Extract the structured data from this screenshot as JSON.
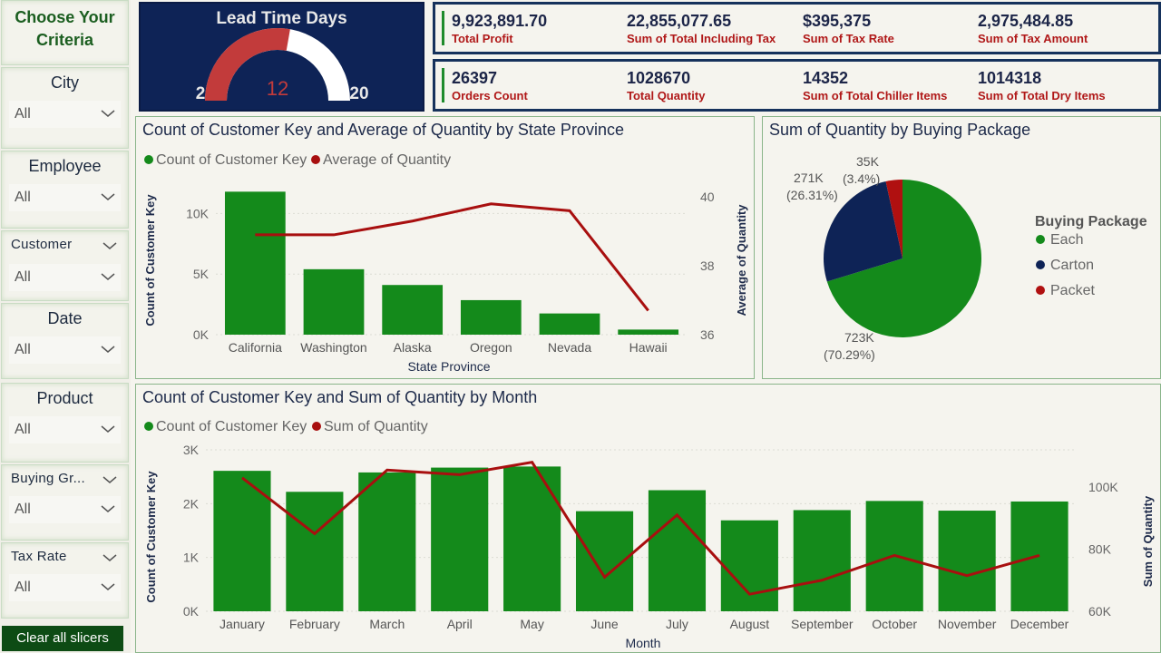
{
  "sidebar": {
    "title": "Choose Your Criteria",
    "slicers": [
      {
        "label": "City",
        "value": "All"
      },
      {
        "label": "Employee",
        "value": "All"
      },
      {
        "label": "Customer",
        "value": "All"
      },
      {
        "label": "Date",
        "value": "All"
      },
      {
        "label": "Product",
        "value": "All"
      },
      {
        "label": "Buying Gr...",
        "value": "All"
      },
      {
        "label": "Tax Rate",
        "value": "All"
      }
    ],
    "clear_label": "Clear all slicers"
  },
  "gauge": {
    "title": "Lead Time Days",
    "min": "2",
    "max": "20",
    "value": "12",
    "min_num": 2,
    "max_num": 20,
    "value_num": 12,
    "fill_color": "#c23b3b",
    "track_color": "#ffffff"
  },
  "kpis_row1": [
    {
      "value": "9,923,891.70",
      "label": "Total Profit"
    },
    {
      "value": "22,855,077.65",
      "label": "Sum of Total Including Tax"
    },
    {
      "value": "$395,375",
      "label": "Sum of Tax Rate"
    },
    {
      "value": "2,975,484.85",
      "label": "Sum of Tax Amount"
    }
  ],
  "kpis_row2": [
    {
      "value": "26397",
      "label": "Orders Count"
    },
    {
      "value": "1028670",
      "label": "Total Quantity"
    },
    {
      "value": "14352",
      "label": "Sum of Total Chiller Items"
    },
    {
      "value": "1014318",
      "label": "Sum of Total Dry Items"
    }
  ],
  "colors": {
    "bar": "#148a1b",
    "line": "#a80f0f",
    "navy": "#0e2356"
  },
  "chart_data": [
    {
      "type": "bar",
      "title": "Count of Customer Key and Average of Quantity by State Province",
      "legend": [
        "Count of Customer Key",
        "Average of Quantity"
      ],
      "xlabel": "State Province",
      "ylabel": "Count of Customer Key",
      "y2label": "Average of Quantity",
      "categories": [
        "California",
        "Washington",
        "Alaska",
        "Oregon",
        "Nevada",
        "Hawaii"
      ],
      "series": [
        {
          "name": "Count of Customer Key",
          "type": "bar",
          "values": [
            11800,
            5400,
            4100,
            2850,
            1750,
            420
          ]
        },
        {
          "name": "Average of Quantity",
          "type": "line",
          "axis": "right",
          "values": [
            38.9,
            38.9,
            39.3,
            39.8,
            39.6,
            36.7
          ]
        }
      ],
      "yticks": [
        "0K",
        "5K",
        "10K"
      ],
      "ylim": [
        0,
        12500
      ],
      "y2ticks": [
        "36",
        "38",
        "40"
      ],
      "y2lim": [
        36,
        40.4
      ]
    },
    {
      "type": "pie",
      "title": "Sum of Quantity by Buying Package",
      "legend_title": "Buying Package",
      "slices": [
        {
          "label": "Each",
          "value": 723000,
          "display": "723K",
          "pct": "(70.29%)",
          "color": "#148a1b"
        },
        {
          "label": "Carton",
          "value": 271000,
          "display": "271K",
          "pct": "(26.31%)",
          "color": "#0e2356"
        },
        {
          "label": "Packet",
          "value": 35000,
          "display": "35K",
          "pct": "(3.4%)",
          "color": "#b01010"
        }
      ]
    },
    {
      "type": "bar",
      "title": "Count of Customer Key and Sum of Quantity by Month",
      "legend": [
        "Count of Customer Key",
        "Sum of Quantity"
      ],
      "xlabel": "Month",
      "ylabel": "Count of Customer Key",
      "y2label": "Sum of Quantity",
      "categories": [
        "January",
        "February",
        "March",
        "April",
        "May",
        "June",
        "July",
        "August",
        "September",
        "October",
        "November",
        "December"
      ],
      "series": [
        {
          "name": "Count of Customer Key",
          "type": "bar",
          "values": [
            2610,
            2220,
            2580,
            2670,
            2690,
            1860,
            2250,
            1690,
            1880,
            2050,
            1870,
            2040
          ]
        },
        {
          "name": "Sum of Quantity",
          "type": "line",
          "axis": "right",
          "values": [
            103000,
            85000,
            105500,
            104000,
            108000,
            71000,
            91000,
            65500,
            70000,
            78000,
            71500,
            78000
          ]
        }
      ],
      "yticks": [
        "0K",
        "1K",
        "2K",
        "3K"
      ],
      "ylim": [
        0,
        3000
      ],
      "y2ticks": [
        "60K",
        "80K",
        "100K"
      ],
      "y2lim": [
        60000,
        112000
      ]
    }
  ]
}
